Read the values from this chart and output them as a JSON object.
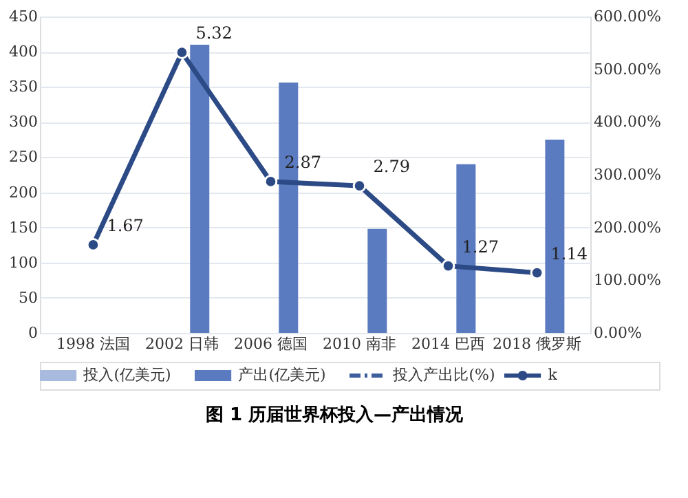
{
  "chart_data": {
    "type": "bar",
    "title": "图 1 历届世界杯投入—产出情况",
    "categories": [
      "1998 法国",
      "2002 日韩",
      "2006 德国",
      "2010 南非",
      "2014 巴西",
      "2018 俄罗斯"
    ],
    "series": [
      {
        "name": "投入(亿美元)",
        "color": "#a9badf",
        "values": [
          null,
          null,
          null,
          null,
          null,
          null
        ]
      },
      {
        "name": "产出(亿美元)",
        "color": "#5a7bc0",
        "values": [
          null,
          410,
          356,
          148,
          240,
          275
        ]
      },
      {
        "name": "投入产出比(%)",
        "type": "line",
        "axis": "y2",
        "line_style": "dashed",
        "color": "#3e5f9e",
        "values": [
          null,
          null,
          null,
          null,
          null,
          null
        ]
      },
      {
        "name": "k",
        "type": "line",
        "axis": "y2",
        "marker": "circle",
        "color": "#2c4a85",
        "values": [
          1.67,
          5.32,
          2.87,
          2.79,
          1.27,
          1.14
        ],
        "value_labels": [
          "1.67",
          "5.32",
          "2.87",
          "2.79",
          "1.27",
          "1.14"
        ]
      }
    ],
    "ylim": [
      0,
      450
    ],
    "yticks": [
      0,
      50,
      100,
      150,
      200,
      250,
      300,
      350,
      400,
      450
    ],
    "y2lim": [
      0,
      6
    ],
    "y2ticks": [
      {
        "value": 0,
        "label": "0.00%"
      },
      {
        "value": 1,
        "label": "100.00%"
      },
      {
        "value": 2,
        "label": "200.00%"
      },
      {
        "value": 3,
        "label": "300.00%"
      },
      {
        "value": 4,
        "label": "400.00%"
      },
      {
        "value": 5,
        "label": "500.00%"
      },
      {
        "value": 6,
        "label": "600.00%"
      }
    ],
    "grid": "y",
    "legend": "bottom"
  }
}
